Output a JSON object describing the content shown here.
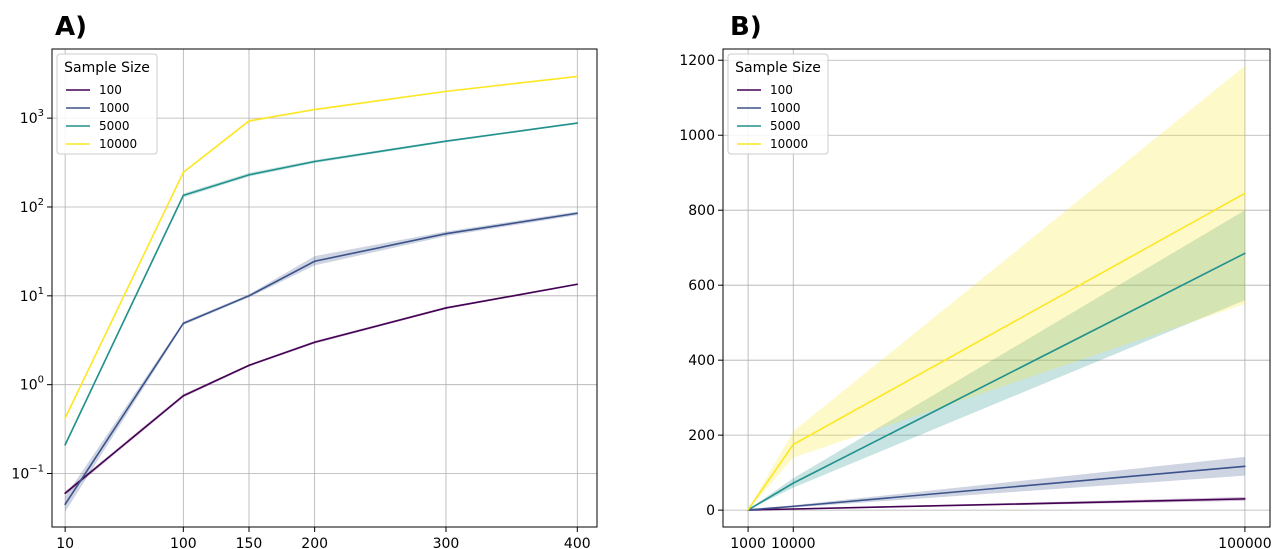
{
  "chart_data": [
    {
      "panel": "A)",
      "type": "line",
      "yscale": "log",
      "x": [
        10,
        100,
        150,
        200,
        300,
        400
      ],
      "xlim": [
        0,
        415
      ],
      "ylim": [
        0.025,
        6000
      ],
      "y_ticks": [
        0.1,
        1,
        10,
        100,
        1000
      ],
      "y_tick_labels": [
        {
          "base": "10",
          "exp": "−1"
        },
        {
          "base": "10",
          "exp": "0"
        },
        {
          "base": "10",
          "exp": "1"
        },
        {
          "base": "10",
          "exp": "2"
        },
        {
          "base": "10",
          "exp": "3"
        }
      ],
      "x_tick_labels": [
        "10",
        "100",
        "150",
        "200",
        "300",
        "400"
      ],
      "grid": true,
      "legend": {
        "title": "Sample Size",
        "placement": "top-left"
      },
      "series": [
        {
          "name": "100",
          "color": "#440154",
          "values": [
            0.06,
            0.75,
            1.65,
            3.0,
            7.3,
            13.5
          ],
          "lower": [
            0.057,
            0.72,
            1.6,
            2.9,
            7.1,
            13.2
          ],
          "upper": [
            0.063,
            0.78,
            1.7,
            3.1,
            7.5,
            13.8
          ]
        },
        {
          "name": "1000",
          "color": "#3b528b",
          "values": [
            0.045,
            4.9,
            10.0,
            24.5,
            50.0,
            85.0
          ],
          "lower": [
            0.037,
            4.7,
            9.6,
            22.0,
            47.0,
            81.0
          ],
          "upper": [
            0.055,
            5.1,
            10.4,
            28.0,
            53.0,
            89.0
          ]
        },
        {
          "name": "5000",
          "color": "#21918c",
          "values": [
            0.21,
            135,
            230,
            325,
            550,
            880
          ],
          "lower": [
            0.2,
            128,
            220,
            312,
            535,
            860
          ],
          "upper": [
            0.22,
            142,
            242,
            338,
            565,
            900
          ]
        },
        {
          "name": "10000",
          "color": "#fde725",
          "values": [
            0.42,
            245,
            930,
            1250,
            2000,
            2950
          ],
          "lower": [
            0.4,
            238,
            900,
            1220,
            1960,
            2900
          ],
          "upper": [
            0.44,
            252,
            960,
            1280,
            2040,
            3000
          ]
        }
      ]
    },
    {
      "panel": "B)",
      "type": "line",
      "yscale": "linear",
      "x": [
        1000,
        10000,
        100000
      ],
      "xlim": [
        -4000,
        105000
      ],
      "ylim": [
        -45,
        1230
      ],
      "y_ticks": [
        0,
        200,
        400,
        600,
        800,
        1000,
        1200
      ],
      "x_tick_labels": [
        "1000",
        "10000",
        "100000"
      ],
      "grid": true,
      "legend": {
        "title": "Sample Size",
        "placement": "top-left"
      },
      "series": [
        {
          "name": "100",
          "color": "#440154",
          "values": [
            0.3,
            3,
            30
          ],
          "lower": [
            0.2,
            2,
            25
          ],
          "upper": [
            0.4,
            4,
            35
          ]
        },
        {
          "name": "1000",
          "color": "#3b528b",
          "values": [
            0.5,
            10,
            117
          ],
          "lower": [
            0.3,
            7,
            92
          ],
          "upper": [
            0.7,
            13,
            142
          ]
        },
        {
          "name": "5000",
          "color": "#21918c",
          "values": [
            0.5,
            72,
            685
          ],
          "lower": [
            0.3,
            60,
            560
          ],
          "upper": [
            0.7,
            85,
            800
          ]
        },
        {
          "name": "10000",
          "color": "#fde725",
          "values": [
            1,
            175,
            845
          ],
          "lower": [
            0.5,
            140,
            550
          ],
          "upper": [
            1.5,
            210,
            1185
          ]
        }
      ]
    }
  ]
}
